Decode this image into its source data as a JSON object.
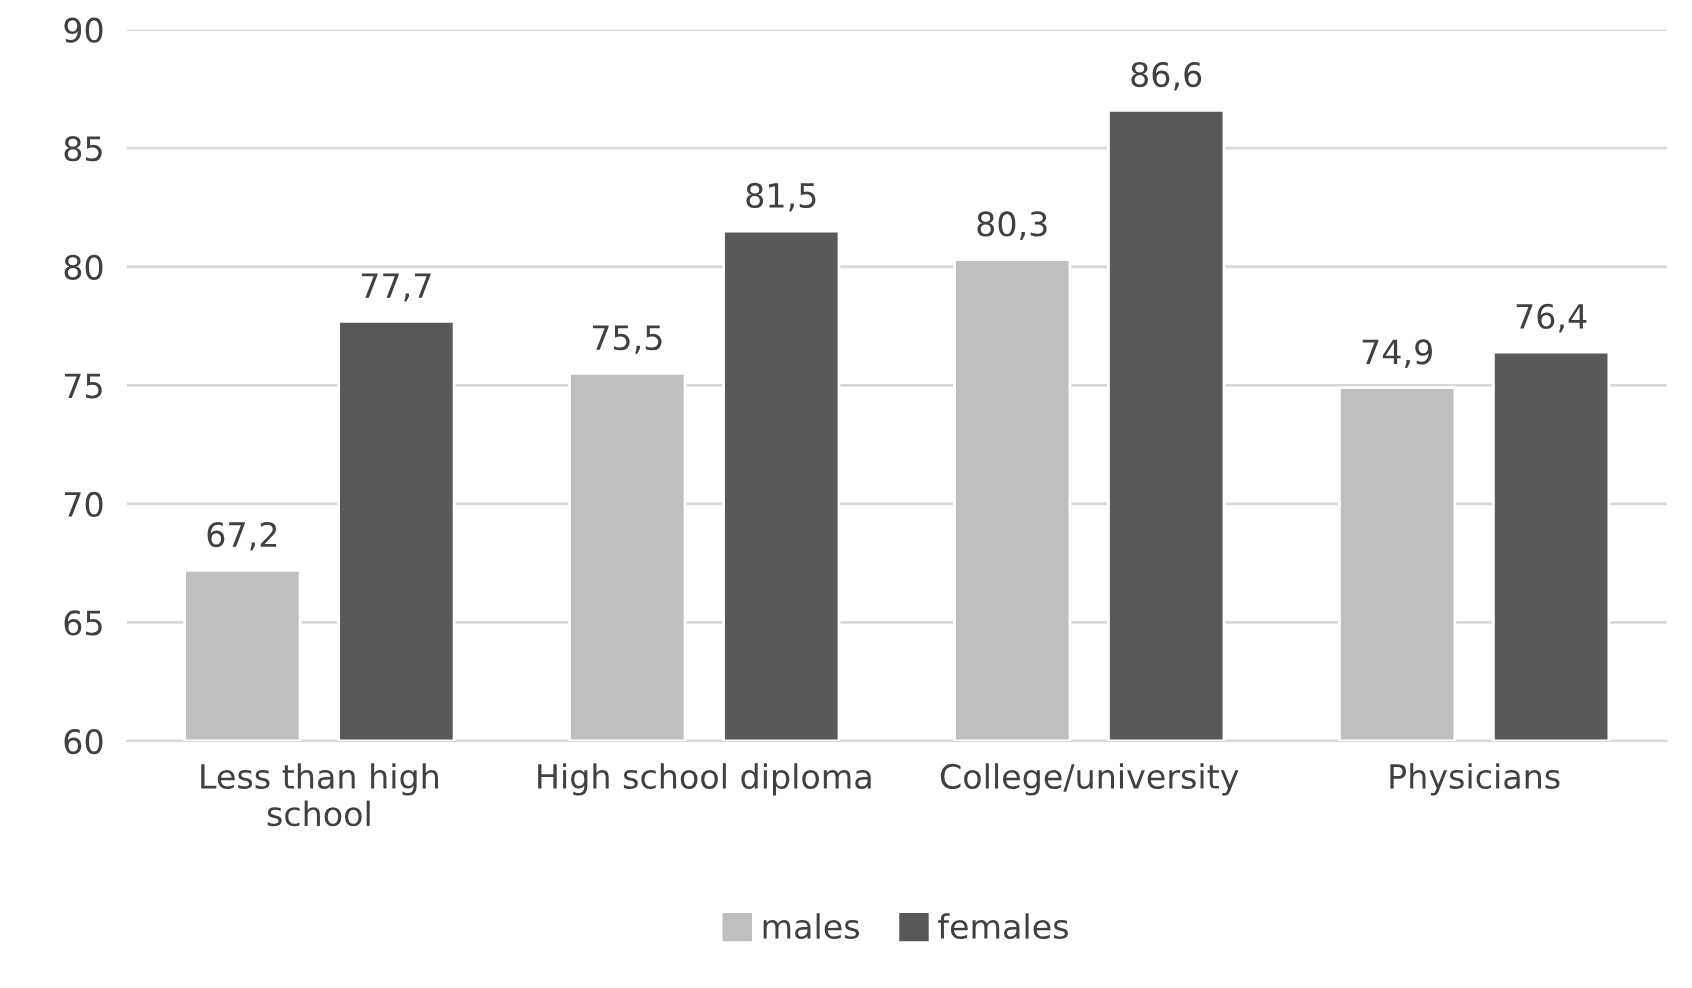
{
  "chart_data": {
    "type": "bar",
    "categories": [
      "Less than high\nschool",
      "High school diploma",
      "College/university",
      "Physicians"
    ],
    "series": [
      {
        "name": "males",
        "color": "#bfbfbf",
        "values": [
          67.2,
          75.5,
          80.3,
          74.9
        ],
        "value_labels": [
          "67,2",
          "75,5",
          "80,3",
          "74,9"
        ]
      },
      {
        "name": "females",
        "color": "#595959",
        "values": [
          77.7,
          81.5,
          86.6,
          76.4
        ],
        "value_labels": [
          "77,7",
          "81,5",
          "86,6",
          "76,4"
        ]
      }
    ],
    "ylim": [
      60,
      90
    ],
    "yticks": [
      60,
      65,
      70,
      75,
      80,
      85,
      90
    ],
    "grid": "y",
    "legend": "bottom"
  }
}
